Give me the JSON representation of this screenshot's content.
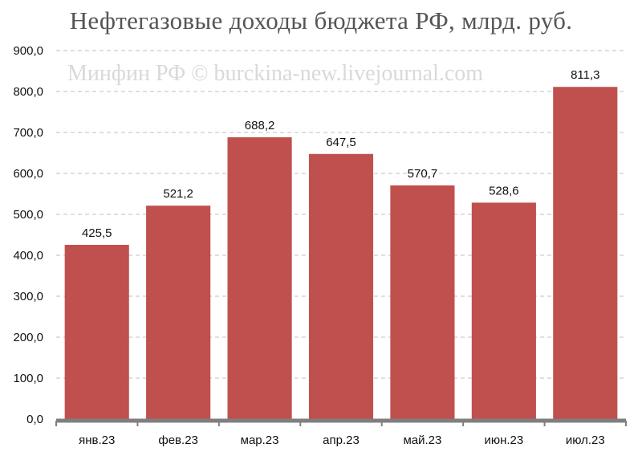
{
  "chart_data": {
    "type": "bar",
    "title": "Нефтегазовые доходы бюджета РФ, млрд. руб.",
    "watermark": "Минфин РФ © burckina-new.livejournal.com",
    "categories": [
      "янв.23",
      "фев.23",
      "мар.23",
      "апр.23",
      "май.23",
      "июн.23",
      "июл.23"
    ],
    "values": [
      425.5,
      521.2,
      688.2,
      647.5,
      570.7,
      528.6,
      811.3
    ],
    "value_labels": [
      "425,5",
      "521,2",
      "688,2",
      "647,5",
      "570,7",
      "528,6",
      "811,3"
    ],
    "ylim": [
      0,
      900
    ],
    "yticks": [
      0,
      100,
      200,
      300,
      400,
      500,
      600,
      700,
      800,
      900
    ],
    "ytick_labels": [
      "0,0",
      "100,0",
      "200,0",
      "300,0",
      "400,0",
      "500,0",
      "600,0",
      "700,0",
      "800,0",
      "900,0"
    ],
    "xlabel": "",
    "ylabel": "",
    "grid": "horizontal dashed",
    "legend": "none",
    "colors": {
      "bar": "#c0504d",
      "grid": "#bfbfbf",
      "axis": "#7f7f7f",
      "title": "#555555",
      "watermark": "#d9d9d9"
    }
  }
}
